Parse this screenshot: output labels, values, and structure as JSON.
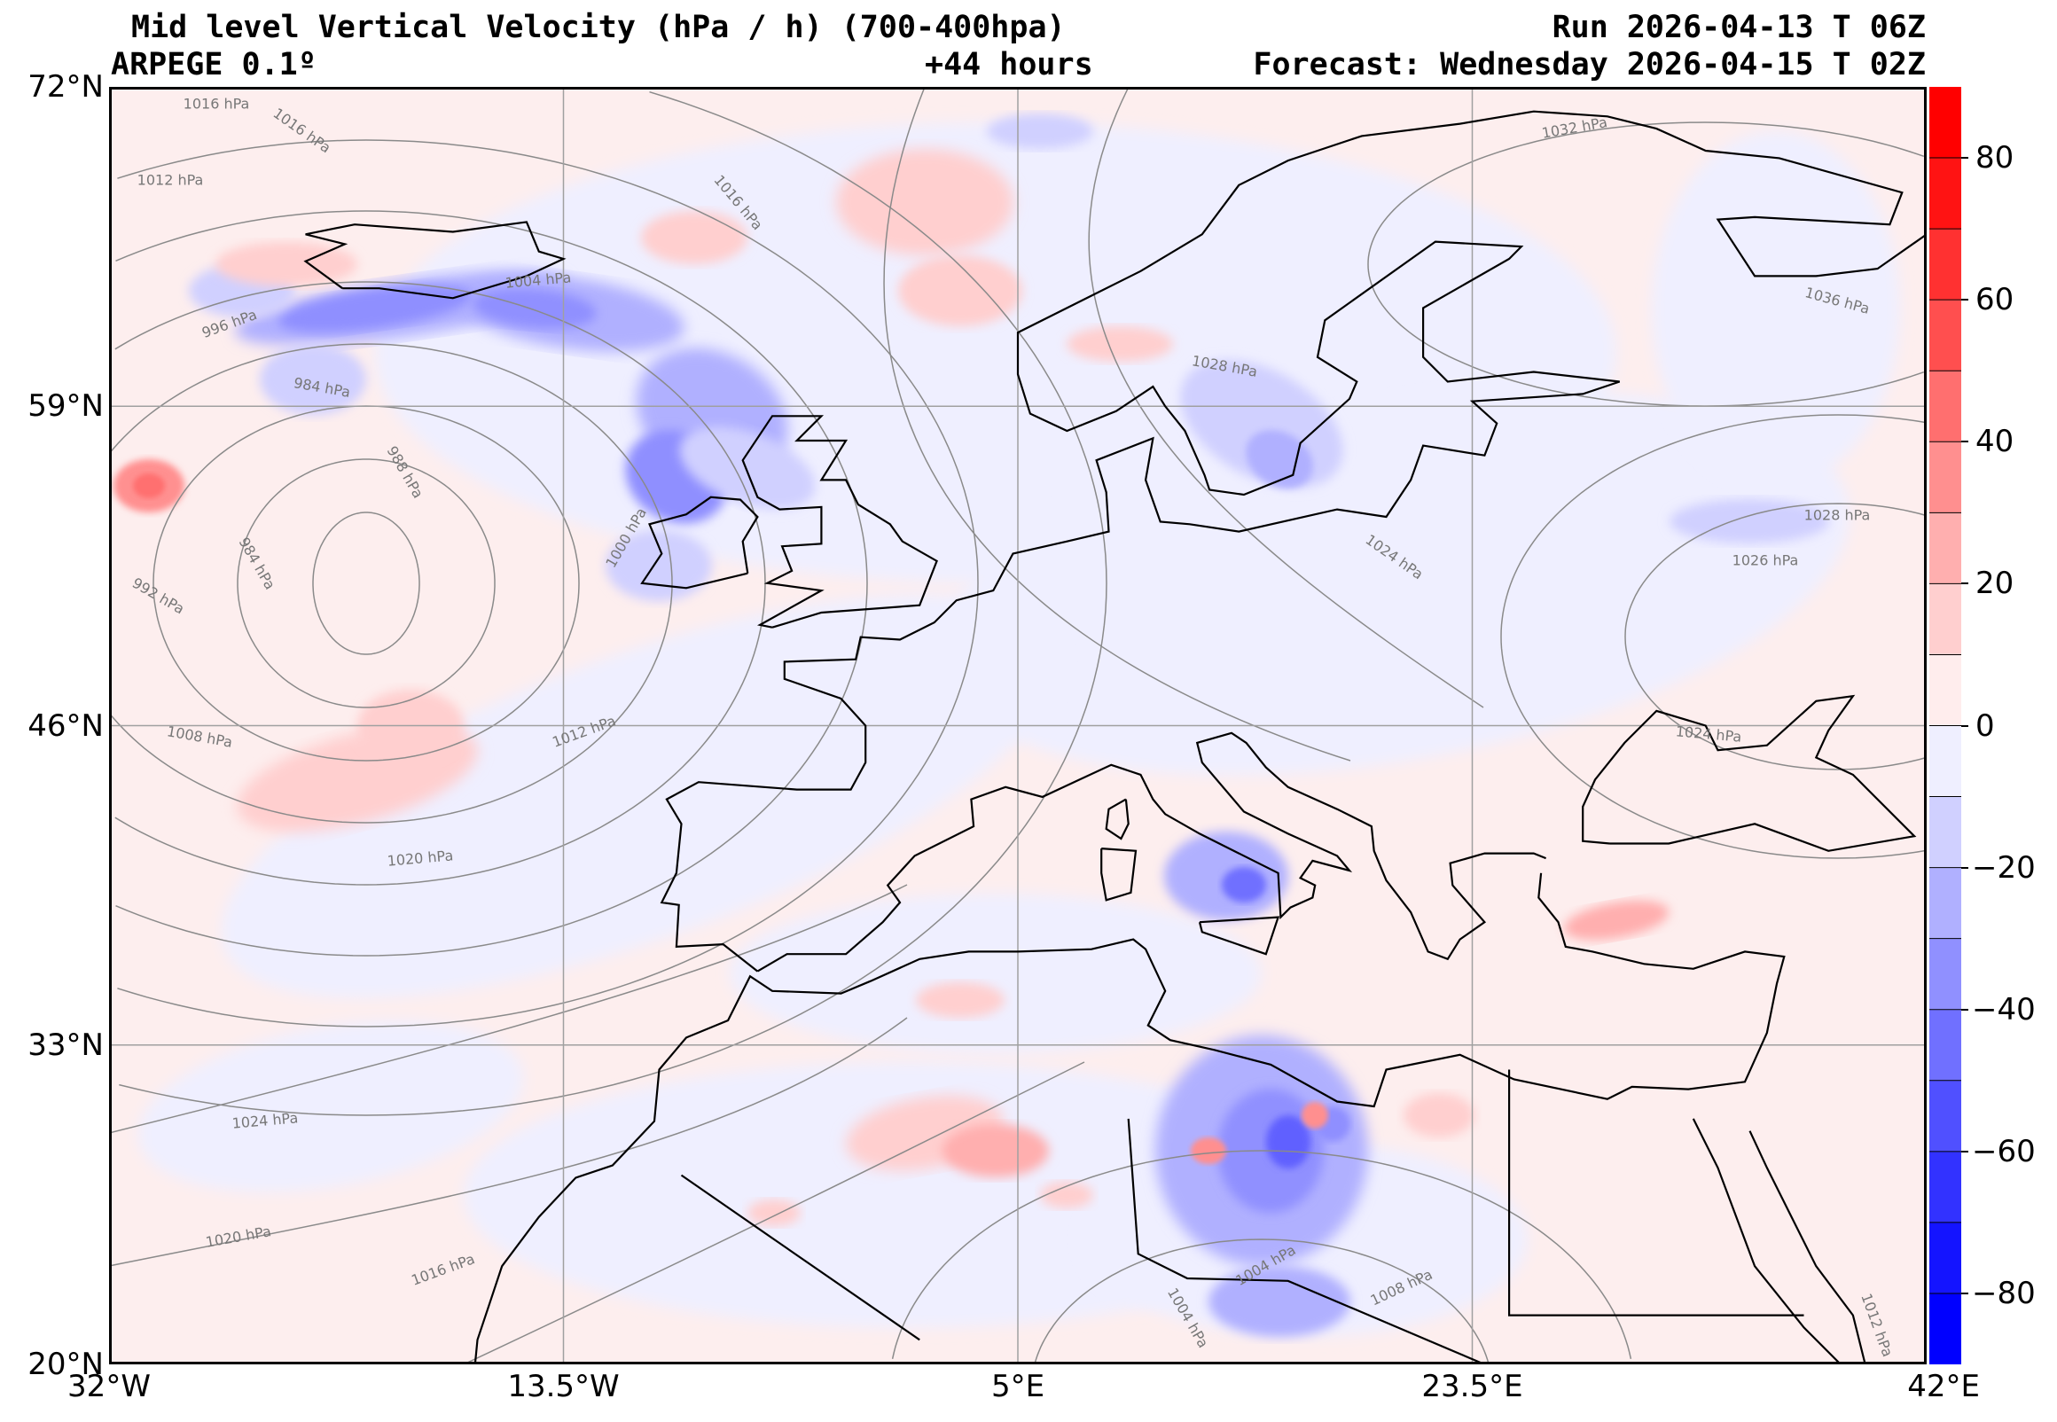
{
  "header": {
    "title": "Mid level Vertical Velocity (hPa / h)  (700-400hpa)",
    "model": "ARPEGE 0.1º",
    "lead_time": "+44 hours",
    "run": "Run 2026-04-13 T 06Z",
    "forecast": "Forecast: Wednesday 2026-04-15 T 02Z"
  },
  "map": {
    "lat_ticks": [
      "72°N",
      "59°N",
      "46°N",
      "33°N",
      "20°N"
    ],
    "lon_ticks": [
      "32°W",
      "13.5°W",
      "5°E",
      "23.5°E",
      "42°E"
    ],
    "extent": {
      "lon_min": -32,
      "lon_max": 42,
      "lat_min": 20,
      "lat_max": 72
    },
    "isobar_labels": [
      "1016 hPa",
      "1016 hPa",
      "1012 hPa",
      "1016 hPa",
      "1004 hPa",
      "996 hPa",
      "984 hPa",
      "988 hPa",
      "984 hPa",
      "992 hPa",
      "1000 hPa",
      "1008 hPa",
      "1012 hPa",
      "1020 hPa",
      "1024 hPa",
      "1020 hPa",
      "1016 hPa",
      "1032 hPa",
      "1036 hPa",
      "1028 hPa",
      "1024 hPa",
      "1028 hPa",
      "1026 hPa",
      "1024 hPa",
      "1004 hPa",
      "1004 hPa",
      "1008 hPa",
      "1012 hPa"
    ]
  },
  "colorbar": {
    "ticks": [
      "80",
      "60",
      "40",
      "20",
      "0",
      "−20",
      "−40",
      "−60",
      "−80"
    ],
    "levels": [
      -90,
      -80,
      -70,
      -60,
      -50,
      -40,
      -30,
      -20,
      -10,
      0,
      10,
      20,
      30,
      40,
      50,
      60,
      70,
      80,
      90
    ],
    "colors": [
      "#0000ff",
      "#1414ff",
      "#3232ff",
      "#5050ff",
      "#7070ff",
      "#9090ff",
      "#b0b0ff",
      "#d0d0ff",
      "#efefff",
      "#ffeded",
      "#ffcfcf",
      "#ffafaf",
      "#ff8f8f",
      "#ff6f6f",
      "#ff4f4f",
      "#ff3131",
      "#ff1313",
      "#ff0000"
    ]
  }
}
